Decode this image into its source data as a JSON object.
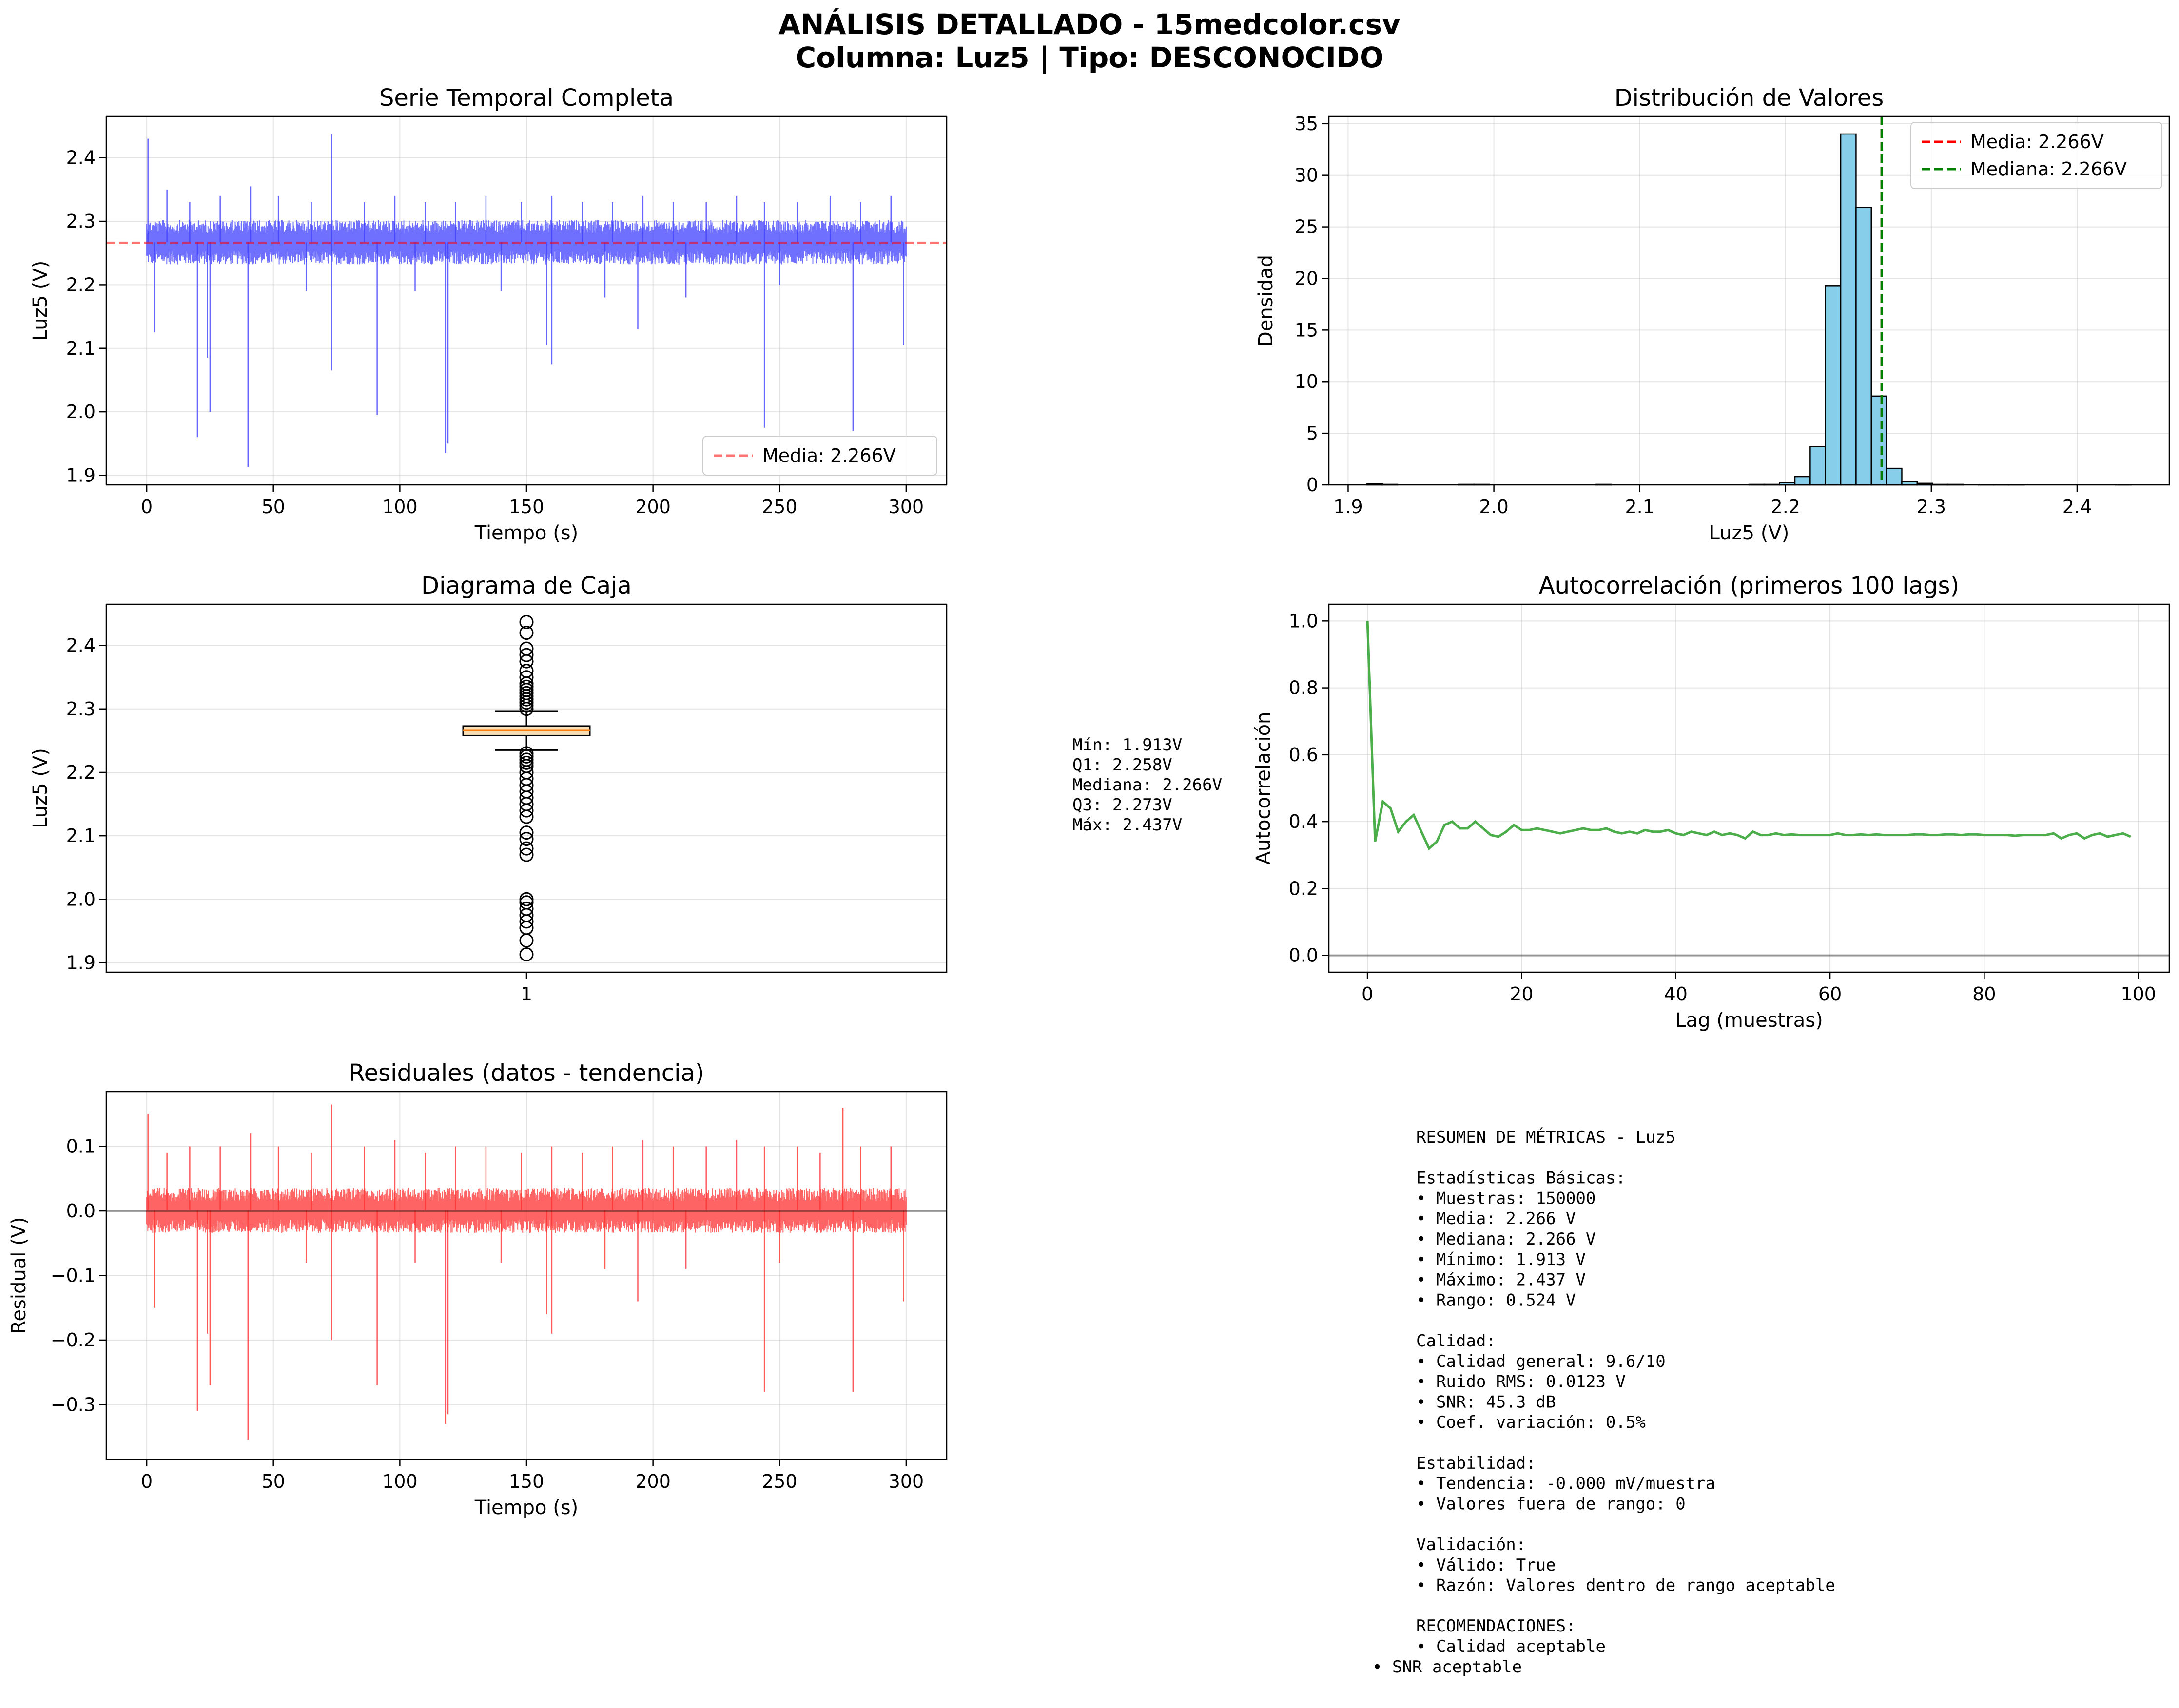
{
  "figure": {
    "title_line1": "ANÁLISIS DETALLADO - 15medcolor.csv",
    "title_line2": "Columna: Luz5 | Tipo: DESCONOCIDO"
  },
  "colors": {
    "series": "#4040ff",
    "mean_line": "#ff0000",
    "median_line": "#008000",
    "hist_fill": "#87ceeb",
    "box_fill": "#f5deb3",
    "acf": "#2ca02c",
    "residual": "#ff3030"
  },
  "chart_data": [
    {
      "id": "time_series",
      "type": "line",
      "title": "Serie Temporal Completa",
      "xlabel": "Tiempo (s)",
      "ylabel": "Luz5 (V)",
      "xlim": [
        -16,
        316
      ],
      "ylim": [
        1.885,
        2.465
      ],
      "xticks": [
        0,
        50,
        100,
        150,
        200,
        250,
        300
      ],
      "yticks": [
        1.9,
        2.0,
        2.1,
        2.2,
        2.3,
        2.4
      ],
      "ytick_labels": [
        "1.9",
        "2.0",
        "2.1",
        "2.2",
        "2.3",
        "2.4"
      ],
      "band": {
        "x_start": 0,
        "x_end": 300,
        "low": 2.232,
        "high": 2.302
      },
      "spikes_up": [
        [
          0.5,
          2.43
        ],
        [
          8,
          2.35
        ],
        [
          17,
          2.33
        ],
        [
          29,
          2.34
        ],
        [
          41,
          2.355
        ],
        [
          52,
          2.34
        ],
        [
          65,
          2.33
        ],
        [
          73,
          2.437
        ],
        [
          86,
          2.33
        ],
        [
          98,
          2.34
        ],
        [
          110,
          2.33
        ],
        [
          122,
          2.33
        ],
        [
          134,
          2.34
        ],
        [
          148,
          2.33
        ],
        [
          160,
          2.34
        ],
        [
          172,
          2.33
        ],
        [
          184,
          2.33
        ],
        [
          196,
          2.34
        ],
        [
          208,
          2.33
        ],
        [
          221,
          2.33
        ],
        [
          233,
          2.34
        ],
        [
          244,
          2.33
        ],
        [
          257,
          2.33
        ],
        [
          270,
          2.34
        ],
        [
          282,
          2.33
        ],
        [
          294,
          2.34
        ]
      ],
      "spikes_down": [
        [
          3,
          2.125
        ],
        [
          20,
          1.96
        ],
        [
          24,
          2.085
        ],
        [
          25,
          2.0
        ],
        [
          40,
          1.913
        ],
        [
          63,
          2.19
        ],
        [
          73,
          2.065
        ],
        [
          91,
          1.995
        ],
        [
          106,
          2.19
        ],
        [
          118,
          1.935
        ],
        [
          119,
          1.95
        ],
        [
          140,
          2.19
        ],
        [
          158,
          2.105
        ],
        [
          160,
          2.075
        ],
        [
          181,
          2.18
        ],
        [
          194,
          2.13
        ],
        [
          213,
          2.18
        ],
        [
          244,
          1.975
        ],
        [
          250,
          2.2
        ],
        [
          279,
          1.97
        ],
        [
          299,
          2.105
        ]
      ],
      "mean": {
        "value": 2.266,
        "label": "Media: 2.266V"
      }
    },
    {
      "id": "histogram",
      "type": "bar",
      "title": "Distribución de Valores",
      "xlabel": "Luz5 (V)",
      "ylabel": "Densidad",
      "xlim": [
        1.8868,
        2.4632
      ],
      "ylim": [
        0,
        35.7
      ],
      "xticks": [
        1.9,
        2.0,
        2.1,
        2.2,
        2.3,
        2.4
      ],
      "xtick_labels": [
        "1.9",
        "2.0",
        "2.1",
        "2.2",
        "2.3",
        "2.4"
      ],
      "yticks": [
        0,
        5,
        10,
        15,
        20,
        25,
        30,
        35
      ],
      "bin_start": 1.913,
      "bin_width": 0.01048,
      "values": [
        0.1,
        0.05,
        0,
        0,
        0,
        0,
        0.05,
        0.05,
        0,
        0,
        0,
        0,
        0,
        0,
        0,
        0.05,
        0,
        0,
        0,
        0,
        0,
        0,
        0,
        0,
        0,
        0.05,
        0.05,
        0.2,
        0.8,
        3.7,
        19.3,
        34.0,
        26.9,
        8.6,
        1.6,
        0.3,
        0.15,
        0.05,
        0.05,
        0,
        0.02,
        0.02,
        0.02,
        0,
        0,
        0,
        0,
        0,
        0,
        0.02
      ],
      "mean": {
        "value": 2.266,
        "label": "Media: 2.266V"
      },
      "median": {
        "value": 2.266,
        "label": "Mediana: 2.266V"
      }
    },
    {
      "id": "boxplot",
      "type": "box",
      "title": "Diagrama de Caja",
      "ylabel": "Luz5 (V)",
      "xtick_label": "1",
      "ylim": [
        1.885,
        2.465
      ],
      "yticks": [
        1.9,
        2.0,
        2.1,
        2.2,
        2.3,
        2.4
      ],
      "ytick_labels": [
        "1.9",
        "2.0",
        "2.1",
        "2.2",
        "2.3",
        "2.4"
      ],
      "q1": 2.258,
      "median": 2.266,
      "q3": 2.273,
      "whisker_low": 2.235,
      "whisker_high": 2.296,
      "outliers": [
        1.913,
        1.935,
        1.955,
        1.965,
        1.975,
        1.985,
        1.995,
        2.0,
        2.07,
        2.08,
        2.095,
        2.105,
        2.13,
        2.14,
        2.15,
        2.16,
        2.17,
        2.18,
        2.19,
        2.2,
        2.21,
        2.215,
        2.22,
        2.225,
        2.23,
        2.3,
        2.305,
        2.31,
        2.315,
        2.32,
        2.325,
        2.33,
        2.335,
        2.34,
        2.35,
        2.36,
        2.375,
        2.385,
        2.395,
        2.42,
        2.437
      ],
      "stats_lines": [
        "Mín: 1.913V",
        "Q1: 2.258V",
        "Mediana: 2.266V",
        "Q3: 2.273V",
        "Máx: 2.437V"
      ]
    },
    {
      "id": "autocorrelation",
      "type": "line",
      "title": "Autocorrelación (primeros 100 lags)",
      "xlabel": "Lag (muestras)",
      "ylabel": "Autocorrelación",
      "xlim": [
        -5,
        104
      ],
      "ylim": [
        -0.05,
        1.05
      ],
      "xticks": [
        0,
        20,
        40,
        60,
        80,
        100
      ],
      "yticks": [
        0.0,
        0.2,
        0.4,
        0.6,
        0.8,
        1.0
      ],
      "ytick_labels": [
        "0.0",
        "0.2",
        "0.4",
        "0.6",
        "0.8",
        "1.0"
      ],
      "y": [
        1.0,
        0.34,
        0.46,
        0.44,
        0.37,
        0.4,
        0.42,
        0.37,
        0.32,
        0.34,
        0.39,
        0.4,
        0.38,
        0.38,
        0.4,
        0.38,
        0.36,
        0.355,
        0.37,
        0.39,
        0.375,
        0.375,
        0.38,
        0.375,
        0.37,
        0.365,
        0.37,
        0.375,
        0.38,
        0.375,
        0.375,
        0.38,
        0.37,
        0.365,
        0.37,
        0.365,
        0.375,
        0.37,
        0.37,
        0.375,
        0.365,
        0.36,
        0.37,
        0.365,
        0.36,
        0.37,
        0.36,
        0.365,
        0.36,
        0.35,
        0.37,
        0.36,
        0.36,
        0.365,
        0.36,
        0.362,
        0.36,
        0.36,
        0.36,
        0.36,
        0.36,
        0.365,
        0.36,
        0.36,
        0.362,
        0.36,
        0.362,
        0.36,
        0.36,
        0.36,
        0.36,
        0.362,
        0.362,
        0.36,
        0.36,
        0.362,
        0.362,
        0.36,
        0.362,
        0.362,
        0.36,
        0.36,
        0.36,
        0.36,
        0.358,
        0.36,
        0.36,
        0.36,
        0.36,
        0.365,
        0.35,
        0.36,
        0.365,
        0.35,
        0.36,
        0.365,
        0.355,
        0.36,
        0.365,
        0.355
      ],
      "zero_line": 0.0
    },
    {
      "id": "residuals",
      "type": "line",
      "title": "Residuales (datos - tendencia)",
      "xlabel": "Tiempo (s)",
      "ylabel": "Residual (V)",
      "xlim": [
        -16,
        316
      ],
      "ylim": [
        -0.385,
        0.185
      ],
      "xticks": [
        0,
        50,
        100,
        150,
        200,
        250,
        300
      ],
      "yticks": [
        -0.3,
        -0.2,
        -0.1,
        0.0,
        0.1
      ],
      "ytick_labels": [
        "−0.3",
        "−0.2",
        "−0.1",
        "0.0",
        "0.1"
      ],
      "band": {
        "x_start": 0,
        "x_end": 300,
        "low": -0.034,
        "high": 0.036
      },
      "spikes_up": [
        [
          0.5,
          0.15
        ],
        [
          8,
          0.09
        ],
        [
          17,
          0.1
        ],
        [
          29,
          0.1
        ],
        [
          41,
          0.12
        ],
        [
          52,
          0.1
        ],
        [
          65,
          0.09
        ],
        [
          73,
          0.165
        ],
        [
          86,
          0.1
        ],
        [
          98,
          0.11
        ],
        [
          110,
          0.09
        ],
        [
          122,
          0.1
        ],
        [
          134,
          0.1
        ],
        [
          148,
          0.09
        ],
        [
          160,
          0.1
        ],
        [
          172,
          0.09
        ],
        [
          184,
          0.1
        ],
        [
          196,
          0.11
        ],
        [
          208,
          0.1
        ],
        [
          221,
          0.1
        ],
        [
          233,
          0.11
        ],
        [
          244,
          0.1
        ],
        [
          257,
          0.1
        ],
        [
          266,
          0.09
        ],
        [
          275,
          0.16
        ],
        [
          282,
          0.1
        ],
        [
          294,
          0.1
        ]
      ],
      "spikes_down": [
        [
          3,
          -0.15
        ],
        [
          20,
          -0.31
        ],
        [
          24,
          -0.19
        ],
        [
          25,
          -0.27
        ],
        [
          40,
          -0.355
        ],
        [
          63,
          -0.08
        ],
        [
          73,
          -0.2
        ],
        [
          91,
          -0.27
        ],
        [
          106,
          -0.08
        ],
        [
          118,
          -0.33
        ],
        [
          119,
          -0.315
        ],
        [
          140,
          -0.08
        ],
        [
          158,
          -0.16
        ],
        [
          160,
          -0.19
        ],
        [
          181,
          -0.09
        ],
        [
          194,
          -0.14
        ],
        [
          213,
          -0.09
        ],
        [
          244,
          -0.28
        ],
        [
          250,
          -0.08
        ],
        [
          279,
          -0.28
        ],
        [
          299,
          -0.14
        ]
      ],
      "zero_line": 0.0
    }
  ],
  "summary_lines": [
    "RESUMEN DE MÉTRICAS - Luz5",
    "",
    "Estadísticas Básicas:",
    "• Muestras: 150000",
    "• Media: 2.266 V",
    "• Mediana: 2.266 V",
    "• Mínimo: 1.913 V",
    "• Máximo: 2.437 V",
    "• Rango: 0.524 V",
    "",
    "Calidad:",
    "• Calidad general: 9.6/10",
    "• Ruido RMS: 0.0123 V",
    "• SNR: 45.3 dB",
    "• Coef. variación: 0.5%",
    "",
    "Estabilidad:",
    "• Tendencia: -0.000 mV/muestra",
    "• Valores fuera de rango: 0",
    "",
    "Validación:",
    "• Válido: True",
    "• Razón: Valores dentro de rango aceptable",
    "",
    "RECOMENDACIONES:",
    "• Calidad aceptable"
  ],
  "summary_last_line": "• SNR aceptable"
}
